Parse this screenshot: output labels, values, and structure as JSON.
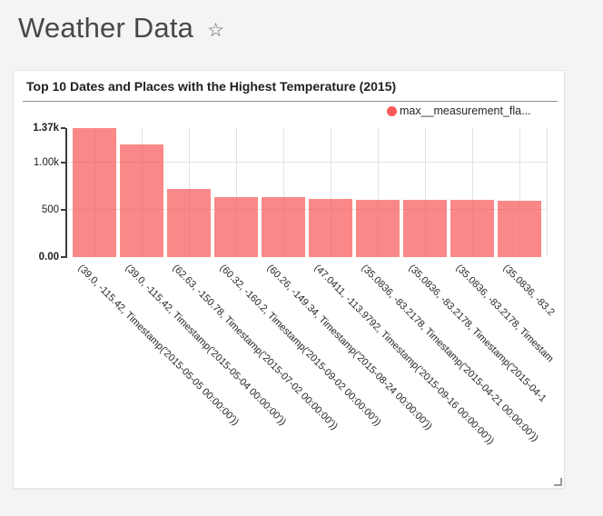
{
  "header": {
    "title": "Weather Data",
    "star_icon": "☆"
  },
  "colors": {
    "page_background": "#f4f4f4",
    "card_background": "#ffffff",
    "series_color": "#fa5a5a",
    "bar_opacity": 0.72,
    "gridline_color": "#e2e2e2",
    "axis_color": "#3a3a3a"
  },
  "chart_data": {
    "type": "bar",
    "title": "Top 10 Dates and Places with the Highest Temperature (2015)",
    "legend": [
      "max__measurement_fla..."
    ],
    "legend_position": "top-right",
    "grid": true,
    "xlabel": "",
    "ylabel": "",
    "ylim": [
      0,
      1370
    ],
    "yticks": [
      {
        "label": "0.00",
        "value": 0,
        "bold": true
      },
      {
        "label": "500",
        "value": 500,
        "bold": false
      },
      {
        "label": "1.00k",
        "value": 1000,
        "bold": false
      },
      {
        "label": "1.37k",
        "value": 1370,
        "bold": true
      }
    ],
    "gridline_values": [
      500,
      1000
    ],
    "categories": [
      "(39.0, -115.42, Timestamp('2015-05-05 00:00:00'))",
      "(39.0, -115.42, Timestamp('2015-05-04 00:00:00'))",
      "(62.63, -150.78, Timestamp('2015-07-02 00:00:00'))",
      "(60.32, -160.2, Timestamp('2015-09-02 00:00:00'))",
      "(60.26, -149.34, Timestamp('2015-08-24 00:00:00'))",
      "(47.0411, -113.9792, Timestamp('2015-09-16 00:00:00'))",
      "(35.0836, -83.2178, Timestamp('2015-04-21 00:00:00'))",
      "(35.0836, -83.2178, Timestamp('2015-04-1",
      "(35.0836, -83.2178, Timestam",
      "(35.0836, -83.2"
    ],
    "values": [
      1370,
      1200,
      725,
      640,
      640,
      615,
      605,
      608,
      608,
      600
    ]
  }
}
